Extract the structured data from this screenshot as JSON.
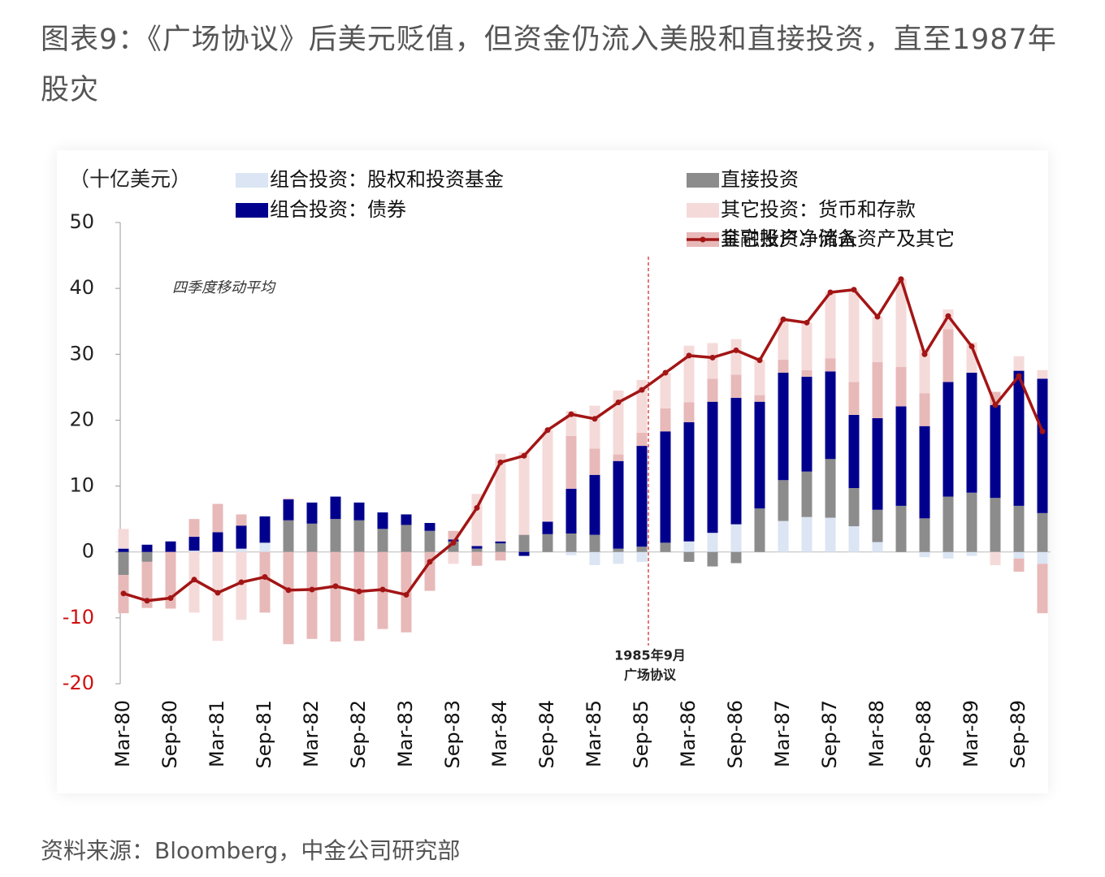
{
  "title": "图表9：《广场协议》后美元贬值，但资金仍流入美股和直接投资，直至1987年股灾",
  "source": "资料来源：Bloomberg，中金公司研究部",
  "chart_data": {
    "type": "stacked_bar_line",
    "unit_label": "（十亿美元）",
    "note": "四季度移动平均",
    "annotation_lines": [
      "1985年9月",
      "广场协议"
    ],
    "categories": [
      "Mar-80",
      null,
      "Sep-80",
      null,
      "Mar-81",
      null,
      "Sep-81",
      null,
      "Mar-82",
      null,
      "Sep-82",
      null,
      "Mar-83",
      null,
      "Sep-83",
      null,
      "Mar-84",
      null,
      "Sep-84",
      null,
      "Mar-85",
      null,
      "Sep-85",
      null,
      "Mar-86",
      null,
      "Sep-86",
      null,
      "Mar-87",
      null,
      "Sep-87",
      null,
      "Mar-88",
      null,
      "Sep-88",
      null,
      "Mar-89",
      null,
      "Sep-89",
      null
    ],
    "ylim": [
      -20,
      50
    ],
    "yticks": [
      -20,
      -10,
      0,
      10,
      20,
      30,
      40,
      50
    ],
    "series": [
      {
        "name": "组合投资：股权和投资基金",
        "color": "#dbe5f3",
        "values": [
          0,
          0,
          0,
          0.2,
          0,
          0.5,
          1.4,
          0,
          0,
          0,
          0,
          0,
          0,
          0,
          0,
          0,
          0,
          0,
          0,
          -0.5,
          -2,
          -1.8,
          -1.5,
          0,
          1.6,
          2.9,
          4.2,
          0,
          4.7,
          5.3,
          5.2,
          3.9,
          1.5,
          0,
          -0.8,
          -1,
          -0.6,
          0,
          -1,
          -1.8
        ]
      },
      {
        "name": "直接投资",
        "color": "#8c8c8c",
        "values": [
          -3.5,
          -1.5,
          0,
          0,
          0,
          0,
          0,
          4.8,
          4.3,
          5.0,
          4.8,
          3.5,
          4.1,
          3.2,
          1.6,
          0.5,
          1.3,
          2.6,
          2.7,
          2.8,
          2.6,
          0.5,
          0.8,
          1.4,
          -1.5,
          -2.2,
          -1.7,
          6.6,
          6.2,
          6.9,
          8.9,
          5.8,
          4.9,
          7.0,
          5.1,
          8.4,
          9.0,
          8.2,
          7.0,
          5.9
        ]
      },
      {
        "name": "组合投资：债券",
        "color": "#00008c",
        "values": [
          0.5,
          1.1,
          1.6,
          2.1,
          3.0,
          3.5,
          4.0,
          3.2,
          3.2,
          3.4,
          2.7,
          2.5,
          1.6,
          1.2,
          0.3,
          0.4,
          0.3,
          -0.6,
          1.9,
          6.8,
          9.1,
          13.3,
          15.3,
          16.9,
          18.1,
          19.9,
          19.2,
          16.2,
          16.3,
          14.4,
          13.3,
          11.1,
          13.9,
          15.1,
          14.0,
          17.4,
          18.2,
          14.1,
          20.5,
          20.4
        ]
      },
      {
        "name": "其它投资：储备资产及其它",
        "color": "#e8b9b9",
        "values": [
          -5.8,
          -7.0,
          -8.6,
          2.7,
          4.3,
          1.7,
          -9.2,
          -14,
          -13.2,
          -13.6,
          -13.5,
          -11.7,
          -12.2,
          -5.9,
          1.3,
          -2.1,
          -1.3,
          0,
          0,
          8,
          4,
          1,
          2,
          3.5,
          3,
          3.5,
          3.5,
          1,
          2,
          1,
          2,
          5,
          8.5,
          6,
          5,
          8,
          0,
          2,
          -2,
          -7.5
        ]
      },
      {
        "name": "其它投资：货币和存款",
        "color": "#f5dada",
        "values": [
          3.0,
          0,
          0,
          -9.2,
          -13.5,
          -10.3,
          0,
          0.2,
          0,
          0,
          0,
          0,
          0,
          0,
          -1.8,
          7.9,
          13.3,
          12.6,
          13.9,
          3.8,
          6.5,
          9.7,
          8,
          5.4,
          8.6,
          5.4,
          5.4,
          5.3,
          6.1,
          7.2,
          10,
          14,
          6.9,
          13.3,
          6.7,
          3,
          4.6,
          -2,
          2.2,
          1.3
        ]
      }
    ],
    "line": {
      "name": "金融账户净流入",
      "color": "#a31515",
      "values": [
        -6.3,
        -7.4,
        -7.0,
        -4.2,
        -6.2,
        -4.6,
        -3.8,
        -5.8,
        -5.7,
        -5.2,
        -6.0,
        -5.7,
        -6.5,
        -1.5,
        1.4,
        6.7,
        13.6,
        14.6,
        18.5,
        20.9,
        20.2,
        22.7,
        24.6,
        27.2,
        29.8,
        29.5,
        30.6,
        29.1,
        35.3,
        34.8,
        39.4,
        39.8,
        35.7,
        41.4,
        30.0,
        35.8,
        31.2,
        22.3,
        26.7,
        18.3
      ]
    }
  }
}
